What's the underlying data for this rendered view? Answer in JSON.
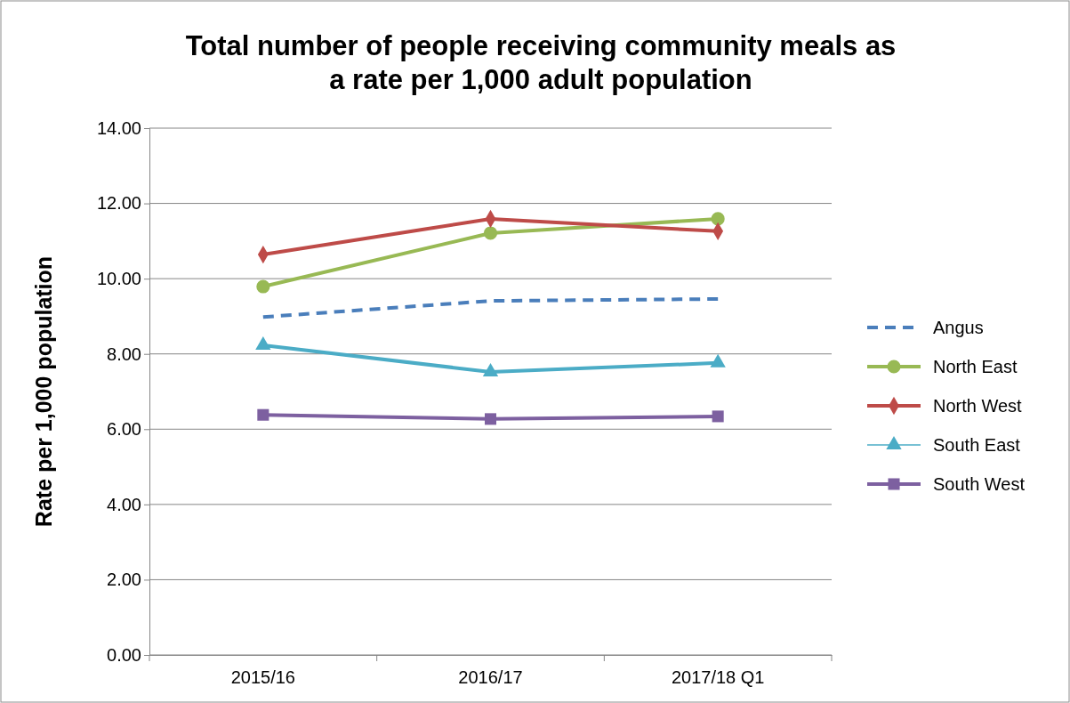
{
  "chart_data": {
    "type": "line",
    "title": "Total number of people receiving community meals as a rate per 1,000 adult population",
    "ylabel": "Rate per 1,000 population",
    "categories": [
      "2015/16",
      "2016/17",
      "2017/18 Q1"
    ],
    "ylim": [
      0,
      14
    ],
    "yticks": [
      {
        "value": 0,
        "label": "0.00"
      },
      {
        "value": 2,
        "label": "2.00"
      },
      {
        "value": 4,
        "label": "4.00"
      },
      {
        "value": 6,
        "label": "6.00"
      },
      {
        "value": 8,
        "label": "8.00"
      },
      {
        "value": 10,
        "label": "10.00"
      },
      {
        "value": 12,
        "label": "12.00"
      },
      {
        "value": 14,
        "label": "14.00"
      }
    ],
    "grid": "y",
    "legend": "right",
    "series": [
      {
        "name": "Angus",
        "color": "#4a7ebb",
        "values": [
          8.98,
          9.41,
          9.46
        ],
        "line_style": "dashed",
        "marker": "none"
      },
      {
        "name": "North East",
        "color": "#98b954",
        "values": [
          9.79,
          11.21,
          11.59
        ],
        "line_style": "solid",
        "marker": "circle"
      },
      {
        "name": "North West",
        "color": "#be4b48",
        "values": [
          10.64,
          11.59,
          11.26
        ],
        "line_style": "solid",
        "marker": "diamond"
      },
      {
        "name": "South East",
        "color": "#4bacc6",
        "values": [
          8.23,
          7.52,
          7.76
        ],
        "line_style": "solid",
        "marker": "triangle"
      },
      {
        "name": "South West",
        "color": "#7d60a0",
        "values": [
          6.38,
          6.27,
          6.34
        ],
        "line_style": "solid",
        "marker": "square"
      }
    ]
  }
}
